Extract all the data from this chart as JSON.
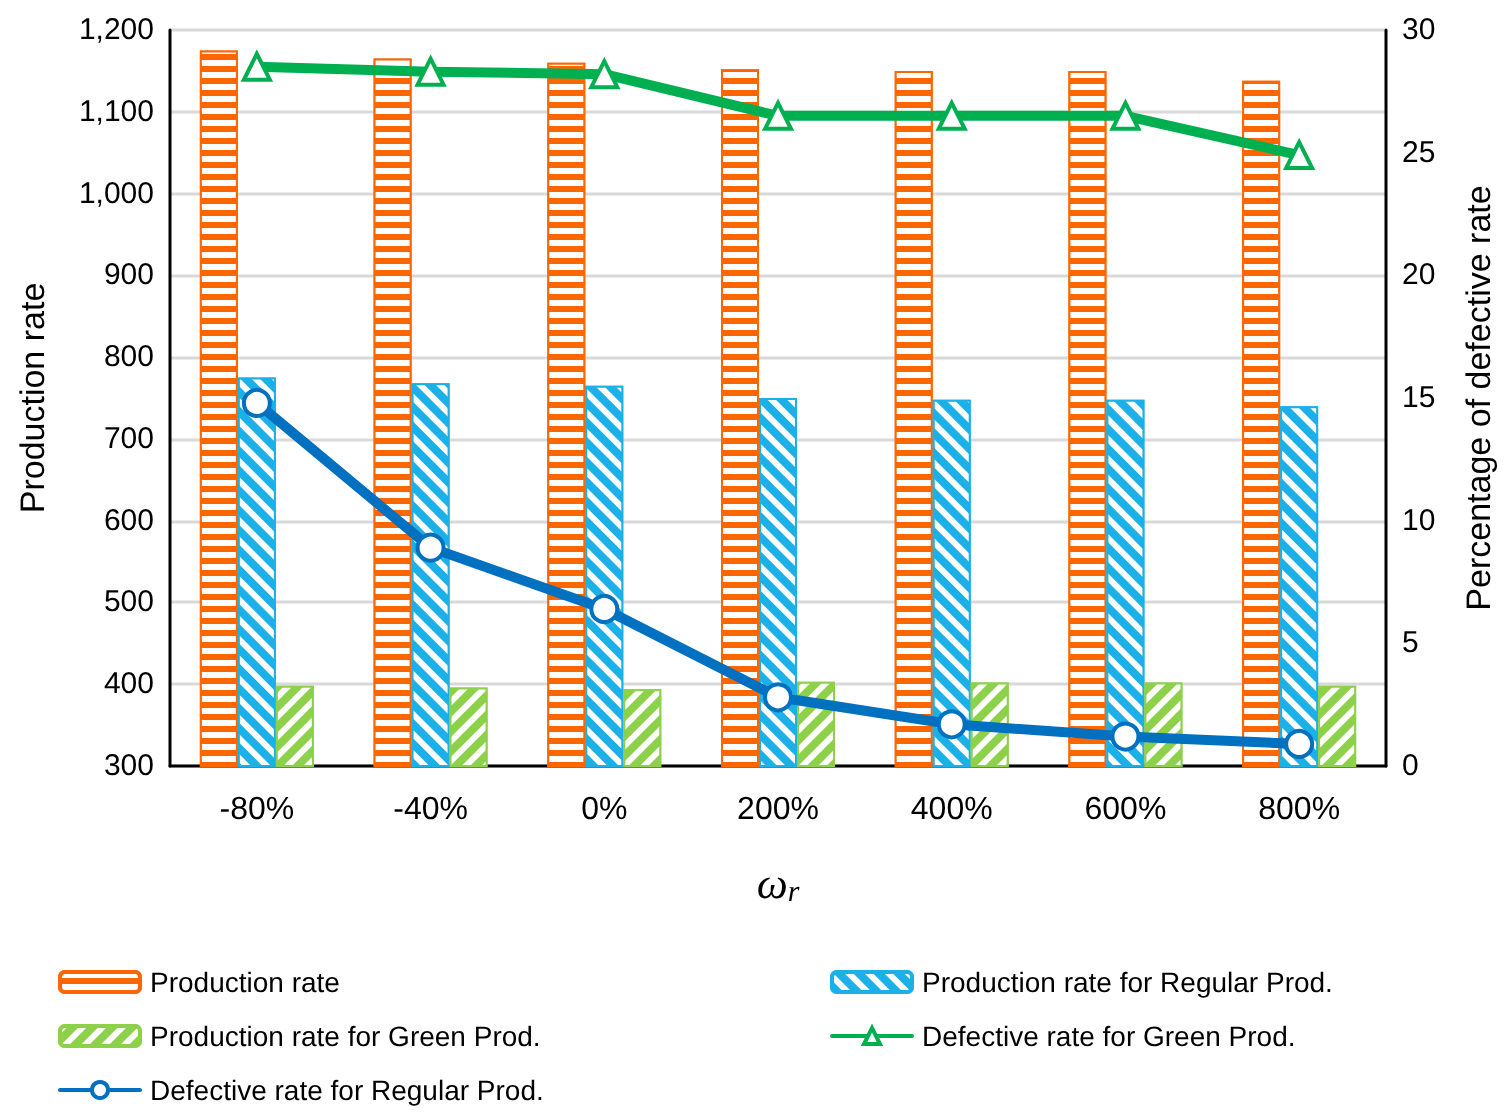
{
  "chart_data": {
    "type": "bar",
    "xlabel": "ω$_{r}$",
    "ylabel": "Production rate",
    "y2label": "Percentage of defective rate",
    "categories": [
      "-80%",
      "-40%",
      "0%",
      "200%",
      "400%",
      "600%",
      "800%"
    ],
    "series": [
      {
        "name": "Production rate",
        "color": "#ff6600",
        "values": [
          1175,
          1165,
          1160,
          1152,
          1150,
          1150,
          1138
        ]
      },
      {
        "name": "Production rate for Regular Prod.",
        "color": "#1cb0e8",
        "values": [
          775,
          768,
          765,
          750,
          748,
          748,
          740
        ]
      },
      {
        "name": "Production rate for Green Prod.",
        "color": "#8dd14a",
        "values": [
          398,
          396,
          394,
          403,
          402,
          402,
          398
        ]
      },
      {
        "name": "Defective rate for Green Prod.",
        "type": "line",
        "axis": "y2",
        "marker": "triangle",
        "color": "#00b050",
        "values": [
          28.5,
          28.3,
          28.2,
          26.5,
          26.5,
          26.5,
          24.9
        ]
      },
      {
        "name": "Defective rate for Regular Prod.",
        "type": "line",
        "axis": "y2",
        "marker": "circle",
        "color": "#0070c0",
        "values": [
          14.8,
          8.9,
          6.4,
          2.8,
          1.7,
          1.2,
          0.9
        ]
      }
    ],
    "ylim": [
      300,
      1200
    ],
    "yticks": [
      300,
      400,
      500,
      600,
      700,
      800,
      900,
      {
        "value": 1000,
        "label": "1,000"
      },
      {
        "value": 1100,
        "label": "1,100"
      },
      {
        "value": 1200,
        "label": "1,200"
      }
    ],
    "y2lim": [
      0,
      30
    ],
    "y2ticks": [
      0,
      5,
      10,
      15,
      20,
      25,
      30
    ],
    "grid": "y",
    "legend": "bottom"
  }
}
